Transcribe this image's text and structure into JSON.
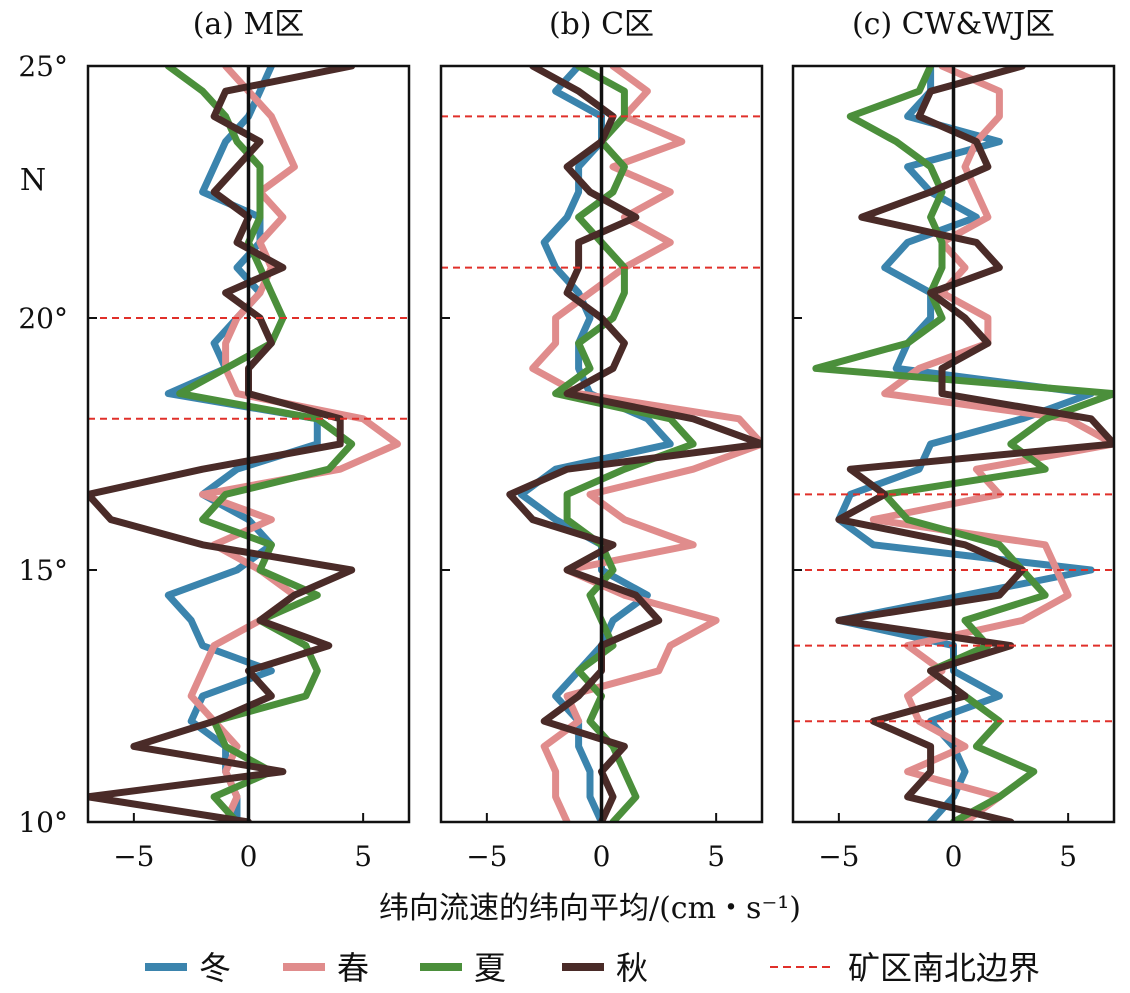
{
  "chart_data": {
    "type": "line",
    "xlabel": "纬向流速的纬向平均/(cm・s⁻¹)",
    "y_axis_unit_label": "N",
    "ylim": [
      10,
      25
    ],
    "xlim": [
      -7,
      7
    ],
    "y_ticks": [
      25,
      20,
      15,
      10
    ],
    "y_tick_labels": [
      "25°",
      "20°",
      "15°",
      "10°"
    ],
    "x_ticks": [
      -5,
      0,
      5
    ],
    "x_tick_labels": [
      "−5",
      "0",
      "5"
    ],
    "lat": [
      25,
      24.5,
      24,
      23.5,
      23,
      22.5,
      22,
      21.5,
      21,
      20.5,
      20,
      19.5,
      19,
      18.5,
      18,
      17.5,
      17,
      16.5,
      16,
      15.5,
      15,
      14.5,
      14,
      13.5,
      13,
      12.5,
      12,
      11.5,
      11,
      10.5,
      10
    ],
    "series_colors": {
      "winter": "#3b84ad",
      "spring": "#e08c8c",
      "summer": "#4b8f3b",
      "autumn": "#4a2b28",
      "boundary": "#e0302a"
    },
    "legend": {
      "winter": "冬",
      "spring": "春",
      "summer": "夏",
      "autumn": "秋",
      "boundary": "矿区南北边界"
    },
    "panels": [
      {
        "title": "(a) M区",
        "boundaries": [
          20,
          18
        ],
        "series": {
          "winter": [
            1,
            0.5,
            0,
            -1,
            -1.5,
            -2,
            0.5,
            0.5,
            -0.5,
            0.5,
            -0.5,
            -1.5,
            -1,
            -3.5,
            3,
            3,
            -0.5,
            -2,
            0,
            1,
            -0.5,
            -3.5,
            -2.5,
            -2,
            1,
            -2,
            -2.5,
            -1,
            -1,
            -0.5,
            -0.5
          ],
          "spring": [
            -1,
            0,
            1,
            1.5,
            2,
            0.5,
            1.5,
            0.5,
            1,
            0.5,
            -0.5,
            -1,
            -1,
            -0.5,
            5,
            6.5,
            4,
            -2,
            1,
            -1.5,
            0.5,
            2,
            0.5,
            -1.5,
            -2,
            -2.5,
            -1.5,
            -0.5,
            -1,
            -0.5,
            -1
          ],
          "summer": [
            -3.5,
            -2,
            -1,
            -0.5,
            0.5,
            0.5,
            0.5,
            0,
            0.5,
            1,
            1.5,
            1,
            -1,
            -3,
            3,
            4.5,
            3.5,
            -1,
            -2,
            1,
            0.5,
            3,
            0.5,
            2.5,
            3,
            2.5,
            -1.5,
            -1,
            1,
            -1.5,
            -0.5
          ],
          "autumn": [
            4.5,
            -1,
            -1.5,
            0.5,
            -0.5,
            -1.5,
            0,
            -0.5,
            1.5,
            -1,
            0.5,
            1,
            0,
            0,
            4,
            4,
            -2,
            -7,
            -6,
            -2,
            4.5,
            2,
            0.5,
            3.5,
            0,
            1,
            -1.5,
            -5,
            1.5,
            -7,
            0
          ]
        }
      },
      {
        "title": "(b) C区",
        "boundaries": [
          24,
          21
        ],
        "series": {
          "winter": [
            -1,
            -2,
            0,
            0,
            -1,
            -1,
            -1.5,
            -2.5,
            -2,
            -1,
            -0.5,
            -1,
            -1,
            -0.5,
            2,
            3,
            -2,
            -3.5,
            -2,
            0,
            0,
            2,
            0.5,
            0,
            -1,
            -2,
            -1,
            -1,
            -0.5,
            -0.5,
            0
          ],
          "spring": [
            0.5,
            2,
            1,
            3.5,
            0.5,
            3,
            1,
            3,
            1,
            -0.5,
            -2,
            -2,
            -3,
            -1,
            6,
            7,
            4,
            -0.5,
            1,
            4,
            -1.5,
            1,
            5,
            3,
            2.5,
            -1.5,
            -1,
            -2.5,
            -2,
            -2,
            -1.5
          ],
          "summer": [
            -1,
            1,
            1,
            0,
            1,
            0.5,
            -1,
            0,
            1,
            1,
            0.5,
            -1,
            -0.5,
            -2,
            3,
            4,
            1,
            -1.5,
            -1.5,
            0,
            0.5,
            -0.5,
            0,
            0.5,
            -1,
            0,
            -0.5,
            0.5,
            1,
            1.5,
            0.5
          ],
          "autumn": [
            -3,
            -1,
            0.5,
            0,
            -1.5,
            -0.5,
            1.5,
            -1,
            -1,
            -1.5,
            0,
            1,
            0.5,
            -1.5,
            4,
            7,
            -1.5,
            -4,
            -3,
            0.5,
            -1.5,
            1.5,
            2.5,
            0,
            0,
            -1,
            -2.5,
            1,
            0,
            0.5,
            0
          ]
        }
      },
      {
        "title": "(c) CW&WJ区",
        "boundaries": [
          16.5,
          15,
          13.5,
          12
        ],
        "series": {
          "winter": [
            -1,
            -1,
            -2,
            2,
            -2,
            -1,
            1,
            -2,
            -3,
            -1,
            -1,
            -2,
            -2.5,
            6,
            3,
            -1,
            -1.5,
            -4.5,
            -5,
            -3.5,
            6,
            0.5,
            -5,
            0,
            0,
            2,
            -1,
            0,
            0.5,
            0,
            -1
          ],
          "spring": [
            -0.5,
            2,
            2,
            1,
            0.5,
            1,
            1.5,
            -0.5,
            0.5,
            -0.5,
            1.5,
            1.5,
            -1.5,
            -3,
            5,
            7,
            1,
            2,
            -3.5,
            4,
            4.5,
            5,
            3,
            -2,
            -0.5,
            -2,
            -1.5,
            0.5,
            -2,
            2,
            0.5
          ],
          "summer": [
            -1,
            -1.5,
            -4.5,
            -2.5,
            -1,
            -0.5,
            -1,
            -0.5,
            -0.5,
            -1,
            -0.5,
            -2,
            -6,
            7,
            4,
            2.5,
            4,
            -3,
            -2,
            2,
            3,
            4,
            0.5,
            1.5,
            -1,
            0.5,
            2,
            1,
            3.5,
            2,
            0
          ],
          "autumn": [
            3,
            -1,
            -1.5,
            1,
            1.5,
            -1,
            -4,
            1,
            2,
            -1,
            0.5,
            1.5,
            -0.5,
            -0.5,
            6,
            7,
            -4.5,
            -3,
            -5,
            0.5,
            3,
            2,
            -5,
            2.5,
            -1,
            0.5,
            -3.5,
            -1,
            -1,
            -2,
            2.5
          ]
        }
      }
    ]
  }
}
